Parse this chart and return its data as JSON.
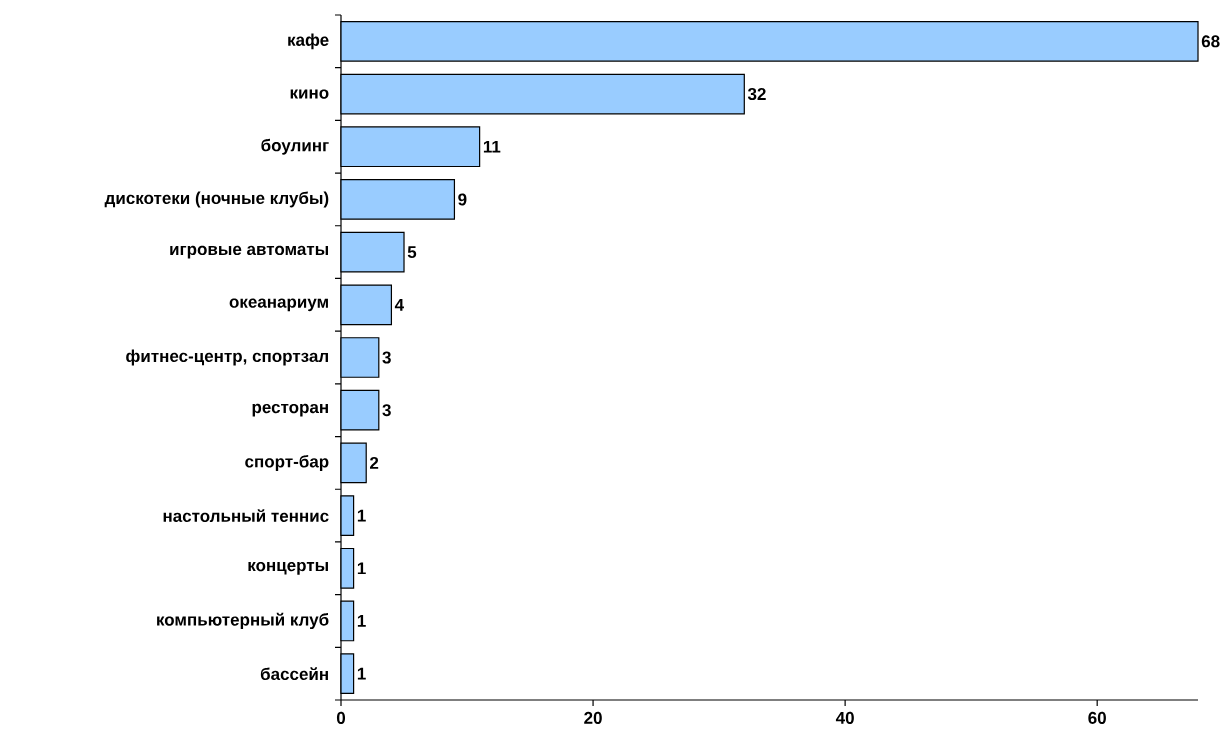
{
  "chart_data": {
    "type": "bar",
    "orientation": "horizontal",
    "categories": [
      "кафе",
      "кино",
      "боулинг",
      "дискотеки (ночные клубы)",
      "игровые автоматы",
      "океанариум",
      "фитнес-центр, спортзал",
      "ресторан",
      "спорт-бар",
      "настольный теннис",
      "концерты",
      "компьютерный клуб",
      "бассейн"
    ],
    "values": [
      68,
      32,
      11,
      9,
      5,
      4,
      3,
      3,
      2,
      1,
      1,
      1,
      1
    ],
    "color": "#99ccff",
    "data_labels": true,
    "xlim": [
      0,
      68
    ],
    "xticks": [
      0,
      20,
      40,
      60
    ]
  }
}
